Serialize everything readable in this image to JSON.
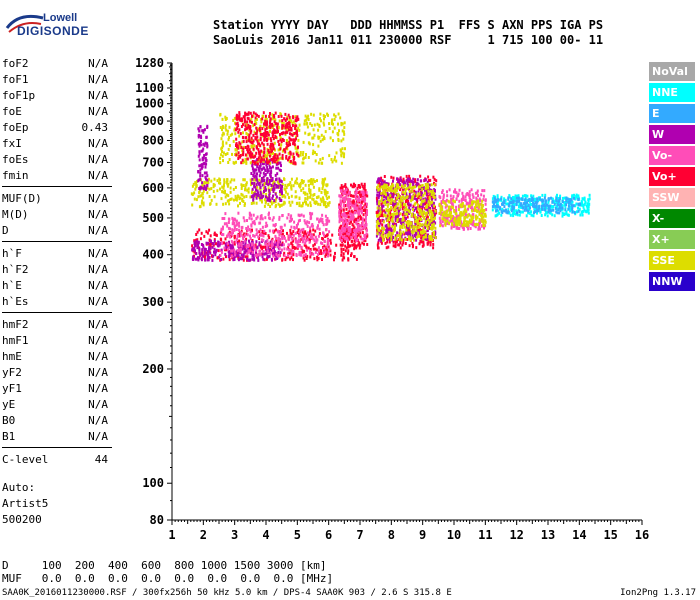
{
  "logo": {
    "line1": "Lowell",
    "line2": "DIGISONDE"
  },
  "header": {
    "row1": "Station YYYY DAY   DDD HHMMSS P1  FFS S AXN PPS IGA PS",
    "row2": "SaoLuis 2016 Jan11 011 230000 RSF     1 715 100 00- 11"
  },
  "params": [
    {
      "name": "foF2",
      "value": "N/A"
    },
    {
      "name": "foF1",
      "value": "N/A"
    },
    {
      "name": "foF1p",
      "value": "N/A"
    },
    {
      "name": "foE",
      "value": "N/A"
    },
    {
      "name": "foEp",
      "value": "0.43"
    },
    {
      "name": "fxI",
      "value": "N/A"
    },
    {
      "name": "foEs",
      "value": "N/A"
    },
    {
      "name": "fmin",
      "value": "N/A"
    },
    {
      "name": "MUF(D)",
      "value": "N/A"
    },
    {
      "name": "M(D)",
      "value": "N/A"
    },
    {
      "name": "D",
      "value": "N/A"
    },
    {
      "name": "h`F",
      "value": "N/A"
    },
    {
      "name": "h`F2",
      "value": "N/A"
    },
    {
      "name": "h`E",
      "value": "N/A"
    },
    {
      "name": "h`Es",
      "value": "N/A"
    },
    {
      "name": "hmF2",
      "value": "N/A"
    },
    {
      "name": "hmF1",
      "value": "N/A"
    },
    {
      "name": "hmE",
      "value": "N/A"
    },
    {
      "name": "yF2",
      "value": "N/A"
    },
    {
      "name": "yF1",
      "value": "N/A"
    },
    {
      "name": "yE",
      "value": "N/A"
    },
    {
      "name": "B0",
      "value": "N/A"
    },
    {
      "name": "B1",
      "value": "N/A"
    },
    {
      "name": "C-level",
      "value": "44"
    }
  ],
  "auto": {
    "line1": "Auto:",
    "line2": "Artist5",
    "line3": "500200"
  },
  "legend": [
    {
      "label": "NoVal",
      "color": "#a8a8a8"
    },
    {
      "label": "NNE",
      "color": "#00ffff"
    },
    {
      "label": "E",
      "color": "#33aaff"
    },
    {
      "label": "W",
      "color": "#b000b0"
    },
    {
      "label": "Vo-",
      "color": "#ff4db8"
    },
    {
      "label": "Vo+",
      "color": "#ff0033"
    },
    {
      "label": "SSW",
      "color": "#ffb3b3"
    },
    {
      "label": "X-",
      "color": "#008800"
    },
    {
      "label": "X+",
      "color": "#88cc55"
    },
    {
      "label": "SSE",
      "color": "#dddd00"
    },
    {
      "label": "NNW",
      "color": "#2a00cc"
    }
  ],
  "table": {
    "row_d_label": "D",
    "row_d_values": "100  200  400  600  800 1000 1500 3000 [km]",
    "row_muf_label": "MUF",
    "row_muf_values": "0.0  0.0  0.0  0.0  0.0  0.0  0.0  0.0 [MHz]"
  },
  "footer": "SAA0K_2016011230000.RSF / 300fx256h 50 kHz 5.0 km / DPS-4 SAA0K 903 / 2.6 S 315.8 E",
  "version": "Ion2Png 1.3.17",
  "chart_data": {
    "type": "scatter",
    "title": "",
    "xlabel": "",
    "ylabel": "",
    "xlim": [
      1,
      16
    ],
    "ylim": [
      80,
      1280
    ],
    "x_ticks": [
      1,
      2,
      3,
      4,
      5,
      6,
      7,
      8,
      9,
      10,
      11,
      12,
      13,
      14,
      15,
      16
    ],
    "y_ticks": [
      80,
      100,
      200,
      300,
      400,
      500,
      600,
      700,
      800,
      900,
      1000,
      1100,
      1280
    ],
    "y_scale": "log",
    "grid": false,
    "legend_position": "right",
    "regions": [
      {
        "series": "Vo+",
        "xmin": 1.6,
        "xmax": 7.0,
        "ymin": 390,
        "ymax": 470
      },
      {
        "series": "W",
        "xmin": 1.6,
        "xmax": 4.5,
        "ymin": 390,
        "ymax": 440
      },
      {
        "series": "Vo-",
        "xmin": 2.5,
        "xmax": 6.0,
        "ymin": 400,
        "ymax": 520
      },
      {
        "series": "SSE",
        "xmin": 1.6,
        "xmax": 6.0,
        "ymin": 540,
        "ymax": 640
      },
      {
        "series": "W",
        "xmin": 3.5,
        "xmax": 4.5,
        "ymin": 560,
        "ymax": 720
      },
      {
        "series": "Vo+",
        "xmin": 6.3,
        "xmax": 7.2,
        "ymin": 420,
        "ymax": 620
      },
      {
        "series": "Vo-",
        "xmin": 6.3,
        "xmax": 7.2,
        "ymin": 440,
        "ymax": 600
      },
      {
        "series": "Vo+",
        "xmin": 7.5,
        "xmax": 9.4,
        "ymin": 420,
        "ymax": 650
      },
      {
        "series": "W",
        "xmin": 7.5,
        "xmax": 9.4,
        "ymin": 440,
        "ymax": 640
      },
      {
        "series": "SSE",
        "xmin": 7.5,
        "xmax": 9.4,
        "ymin": 440,
        "ymax": 620
      },
      {
        "series": "Vo-",
        "xmin": 9.5,
        "xmax": 11.0,
        "ymin": 470,
        "ymax": 600
      },
      {
        "series": "SSE",
        "xmin": 9.5,
        "xmax": 11.0,
        "ymin": 480,
        "ymax": 560
      },
      {
        "series": "NNE",
        "xmin": 11.2,
        "xmax": 14.3,
        "ymin": 510,
        "ymax": 580
      },
      {
        "series": "E",
        "xmin": 11.2,
        "xmax": 14.0,
        "ymin": 520,
        "ymax": 570
      },
      {
        "series": "W",
        "xmin": 1.8,
        "xmax": 2.1,
        "ymin": 600,
        "ymax": 880
      },
      {
        "series": "SSE",
        "xmin": 2.5,
        "xmax": 6.5,
        "ymin": 700,
        "ymax": 950
      },
      {
        "series": "Vo+",
        "xmin": 3.0,
        "xmax": 5.0,
        "ymin": 700,
        "ymax": 960
      }
    ]
  }
}
